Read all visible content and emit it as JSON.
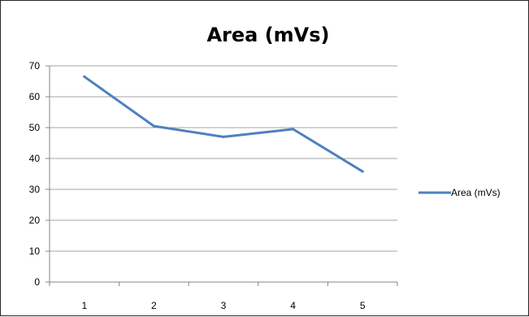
{
  "chart_data": {
    "type": "line",
    "title": "Area (mVs)",
    "xlabel": "",
    "ylabel": "",
    "categories": [
      "1",
      "2",
      "3",
      "4",
      "5"
    ],
    "series": [
      {
        "name": "Area (mVs)",
        "values": [
          66.5,
          50.5,
          47,
          49.5,
          35.8
        ],
        "color": "#4f81bd"
      }
    ],
    "ylim": [
      0,
      70
    ],
    "yticks": [
      0,
      10,
      20,
      30,
      40,
      50,
      60,
      70
    ],
    "grid": true,
    "legend_position": "right"
  }
}
